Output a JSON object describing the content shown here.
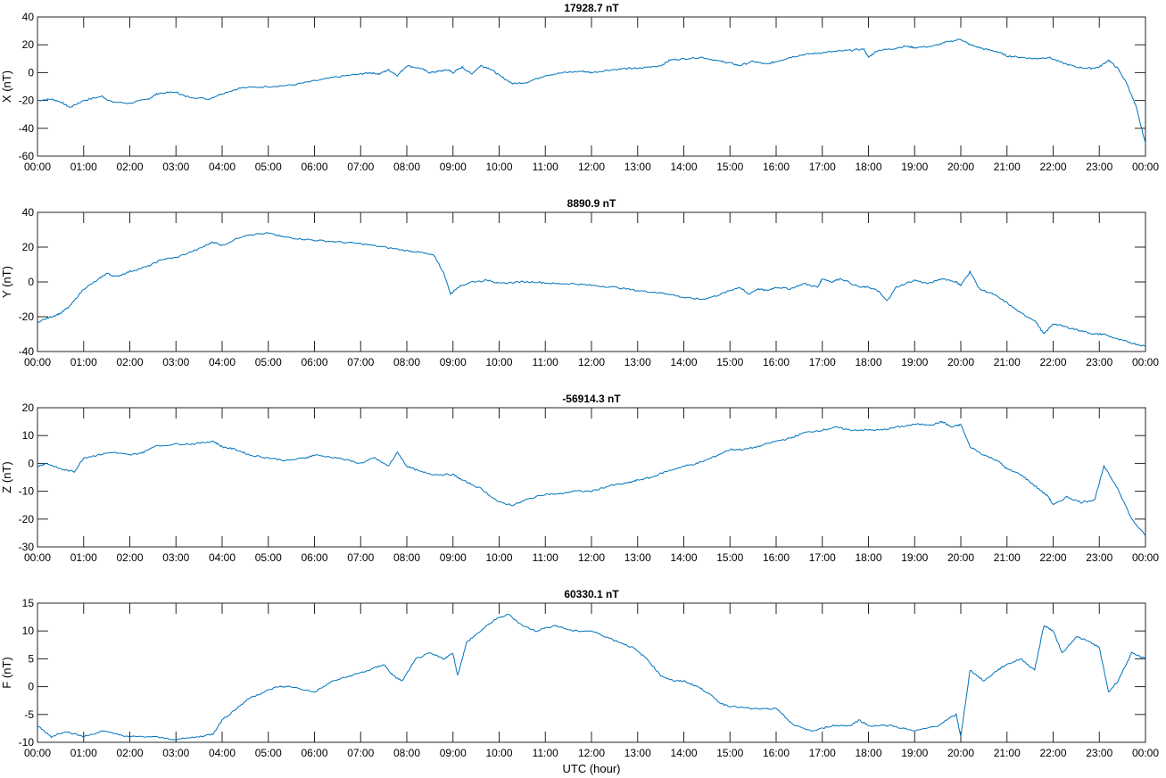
{
  "chart_data": [
    {
      "type": "line",
      "title": "17928.7 nT",
      "ylabel": "X (nT)",
      "xlabel": "",
      "ylim": [
        -60,
        40
      ],
      "yticks": [
        -60,
        -40,
        -20,
        0,
        20,
        40
      ],
      "xlim": [
        0,
        24
      ],
      "xtick_labels": [
        "00:00",
        "01:00",
        "02:00",
        "03:00",
        "04:00",
        "05:00",
        "06:00",
        "07:00",
        "08:00",
        "09:00",
        "10:00",
        "11:00",
        "12:00",
        "13:00",
        "14:00",
        "15:00",
        "16:00",
        "17:00",
        "18:00",
        "19:00",
        "20:00",
        "21:00",
        "22:00",
        "23:00",
        "00:00"
      ],
      "color": "#0072BD",
      "grid": false,
      "series": [
        {
          "x": [
            0,
            0.3,
            0.5,
            0.7,
            1.0,
            1.4,
            1.6,
            2.0,
            2.4,
            2.6,
            3.0,
            3.2,
            3.7,
            4.0,
            4.4,
            5.0,
            5.5,
            6.0,
            6.5,
            7.0,
            7.2,
            7.4,
            7.6,
            7.8,
            8.0,
            8.3,
            8.5,
            8.7,
            8.9,
            9.0,
            9.2,
            9.4,
            9.6,
            9.8,
            10.0,
            10.3,
            10.6,
            11.0,
            11.4,
            11.8,
            12.0,
            12.4,
            12.8,
            13.0,
            13.5,
            13.7,
            14.0,
            14.4,
            14.8,
            15.0,
            15.2,
            15.5,
            15.8,
            16.0,
            16.3,
            16.6,
            16.9,
            17.2,
            17.6,
            17.9,
            18.0,
            18.2,
            18.5,
            18.8,
            19.0,
            19.4,
            19.7,
            20.0,
            20.2,
            20.5,
            20.8,
            21.0,
            21.3,
            21.6,
            21.9,
            22.2,
            22.5,
            22.8,
            23.0,
            23.2,
            23.4,
            23.6,
            23.8,
            24.0
          ],
          "y": [
            -20,
            -19,
            -21,
            -25,
            -20,
            -17,
            -21,
            -22,
            -19,
            -15,
            -14,
            -17,
            -19,
            -15,
            -11,
            -10,
            -9,
            -6,
            -3,
            -1,
            0,
            -1,
            2,
            -2,
            5,
            3,
            0,
            1,
            2,
            0,
            4,
            -1,
            5,
            3,
            -2,
            -8,
            -7,
            -2,
            0,
            1,
            0,
            2,
            3,
            3,
            5,
            9,
            10,
            11,
            8,
            7,
            5,
            8,
            6,
            8,
            11,
            13,
            14,
            15,
            16,
            17,
            11,
            16,
            17,
            19,
            18,
            19,
            22,
            24,
            20,
            17,
            15,
            12,
            11,
            10,
            11,
            7,
            4,
            3,
            4,
            9,
            3,
            -8,
            -25,
            -51
          ]
        }
      ]
    },
    {
      "type": "line",
      "title": "8890.9 nT",
      "ylabel": "Y (nT)",
      "xlabel": "",
      "ylim": [
        -40,
        40
      ],
      "yticks": [
        -40,
        -20,
        0,
        20,
        40
      ],
      "xlim": [
        0,
        24
      ],
      "xtick_labels": [
        "00:00",
        "01:00",
        "02:00",
        "03:00",
        "04:00",
        "05:00",
        "06:00",
        "07:00",
        "08:00",
        "09:00",
        "10:00",
        "11:00",
        "12:00",
        "13:00",
        "14:00",
        "15:00",
        "16:00",
        "17:00",
        "18:00",
        "19:00",
        "20:00",
        "21:00",
        "22:00",
        "23:00",
        "00:00"
      ],
      "color": "#0072BD",
      "grid": false,
      "series": [
        {
          "x": [
            0,
            0.3,
            0.5,
            0.7,
            1.0,
            1.3,
            1.5,
            1.7,
            2.0,
            2.4,
            2.7,
            3.0,
            3.5,
            3.8,
            4.0,
            4.5,
            5.0,
            5.3,
            5.6,
            6.0,
            6.5,
            7.0,
            7.5,
            8.0,
            8.3,
            8.6,
            8.8,
            8.95,
            9.1,
            9.4,
            9.8,
            10.0,
            10.4,
            10.8,
            11.2,
            11.6,
            12.0,
            12.5,
            13.0,
            13.4,
            13.7,
            14.0,
            14.4,
            14.7,
            15.0,
            15.2,
            15.4,
            15.6,
            15.8,
            16.0,
            16.3,
            16.6,
            16.9,
            17.0,
            17.2,
            17.4,
            17.8,
            18.0,
            18.2,
            18.4,
            18.6,
            19.0,
            19.3,
            19.6,
            19.9,
            20.0,
            20.2,
            20.4,
            20.7,
            21.0,
            21.3,
            21.6,
            21.8,
            22.0,
            22.3,
            22.6,
            22.9,
            23.1,
            23.4,
            23.7,
            24.0
          ],
          "y": [
            -23,
            -20,
            -18,
            -14,
            -4,
            1,
            5,
            3,
            6,
            9,
            13,
            14,
            19,
            23,
            21,
            27,
            28,
            26,
            25,
            24,
            23,
            22,
            20,
            18,
            17,
            15,
            5,
            -7,
            -3,
            0,
            1,
            -1,
            0,
            0,
            -1,
            -1,
            -2,
            -3,
            -5,
            -6,
            -7,
            -9,
            -10,
            -8,
            -5,
            -3,
            -7,
            -4,
            -5,
            -3,
            -4,
            -1,
            -3,
            2,
            0,
            2,
            -3,
            -3,
            -5,
            -11,
            -3,
            1,
            -1,
            2,
            0,
            -2,
            6,
            -4,
            -7,
            -12,
            -18,
            -22,
            -30,
            -24,
            -26,
            -28,
            -30,
            -30,
            -33,
            -35,
            -37
          ]
        }
      ]
    },
    {
      "type": "line",
      "title": "-56914.3 nT",
      "ylabel": "Z (nT)",
      "xlabel": "",
      "ylim": [
        -30,
        20
      ],
      "yticks": [
        -30,
        -20,
        -10,
        0,
        10,
        20
      ],
      "xlim": [
        0,
        24
      ],
      "xtick_labels": [
        "00:00",
        "01:00",
        "02:00",
        "03:00",
        "04:00",
        "05:00",
        "06:00",
        "07:00",
        "08:00",
        "09:00",
        "10:00",
        "11:00",
        "12:00",
        "13:00",
        "14:00",
        "15:00",
        "16:00",
        "17:00",
        "18:00",
        "19:00",
        "20:00",
        "21:00",
        "22:00",
        "23:00",
        "00:00"
      ],
      "color": "#0072BD",
      "grid": false,
      "series": [
        {
          "x": [
            0,
            0.2,
            0.5,
            0.8,
            1.0,
            1.3,
            1.6,
            2.0,
            2.3,
            2.5,
            3.0,
            3.4,
            3.8,
            4.0,
            4.3,
            4.6,
            5.0,
            5.4,
            5.8,
            6.0,
            6.5,
            7.0,
            7.3,
            7.6,
            7.8,
            8.0,
            8.3,
            8.6,
            9.0,
            9.2,
            9.6,
            10.0,
            10.3,
            10.6,
            11.0,
            11.3,
            11.6,
            12.0,
            12.4,
            12.8,
            13.0,
            13.3,
            13.6,
            14.0,
            14.3,
            14.6,
            15.0,
            15.3,
            15.6,
            16.0,
            16.3,
            16.6,
            17.0,
            17.3,
            17.6,
            18.0,
            18.3,
            18.6,
            19.0,
            19.4,
            19.6,
            19.8,
            20.0,
            20.2,
            20.5,
            20.8,
            21.0,
            21.3,
            21.6,
            21.9,
            22.0,
            22.3,
            22.6,
            22.9,
            23.1,
            23.4,
            23.7,
            24.0
          ],
          "y": [
            -1,
            0,
            -2,
            -3,
            2,
            3,
            4,
            3,
            4,
            6,
            7,
            7,
            8,
            6,
            5,
            3,
            2,
            1,
            2,
            3,
            2,
            0,
            2,
            -1,
            4,
            -1,
            -3,
            -4,
            -4,
            -6,
            -9,
            -14,
            -15,
            -13,
            -11,
            -11,
            -10,
            -10,
            -8,
            -7,
            -6,
            -5,
            -3,
            -1,
            0,
            2,
            5,
            5,
            6,
            8,
            9,
            11,
            12,
            13,
            12,
            12,
            12,
            13,
            14,
            14,
            15,
            13,
            14,
            6,
            3,
            1,
            -2,
            -4,
            -8,
            -12,
            -15,
            -12,
            -14,
            -13,
            -1,
            -9,
            -20,
            -26
          ]
        }
      ]
    },
    {
      "type": "line",
      "title": "60330.1 nT",
      "ylabel": "F (nT)",
      "xlabel": "UTC (hour)",
      "ylim": [
        -10,
        15
      ],
      "yticks": [
        -10,
        -5,
        0,
        5,
        10,
        15
      ],
      "xlim": [
        0,
        24
      ],
      "xtick_labels": [
        "00:00",
        "01:00",
        "02:00",
        "03:00",
        "04:00",
        "05:00",
        "06:00",
        "07:00",
        "08:00",
        "09:00",
        "10:00",
        "11:00",
        "12:00",
        "13:00",
        "14:00",
        "15:00",
        "16:00",
        "17:00",
        "18:00",
        "19:00",
        "20:00",
        "21:00",
        "22:00",
        "23:00",
        "00:00"
      ],
      "color": "#0072BD",
      "grid": false,
      "series": [
        {
          "x": [
            0,
            0.3,
            0.6,
            1.0,
            1.4,
            2.0,
            2.5,
            3.0,
            3.5,
            3.8,
            4.0,
            4.3,
            4.6,
            4.9,
            5.2,
            5.5,
            6.0,
            6.4,
            6.8,
            7.2,
            7.5,
            7.7,
            7.9,
            8.2,
            8.5,
            8.8,
            9.0,
            9.1,
            9.3,
            9.6,
            9.9,
            10.2,
            10.5,
            10.8,
            11.2,
            11.6,
            12.0,
            12.3,
            12.6,
            12.9,
            13.2,
            13.5,
            13.8,
            14.0,
            14.3,
            14.5,
            14.8,
            15.0,
            15.5,
            16.0,
            16.4,
            16.8,
            17.2,
            17.6,
            17.8,
            18.0,
            18.5,
            19.0,
            19.5,
            19.9,
            20.0,
            20.2,
            20.5,
            20.8,
            21.0,
            21.3,
            21.6,
            21.8,
            22.0,
            22.2,
            22.5,
            22.8,
            23.0,
            23.2,
            23.4,
            23.7,
            24.0
          ],
          "y": [
            -7,
            -9,
            -8,
            -9,
            -8,
            -9,
            -9,
            -9.5,
            -9,
            -8.5,
            -6,
            -4,
            -2,
            -1,
            0,
            0,
            -1,
            1,
            2,
            3,
            4,
            2,
            1,
            5,
            6,
            5,
            6,
            2,
            8,
            10,
            12,
            13,
            11,
            10,
            11,
            10,
            10,
            9,
            8,
            7,
            5,
            2,
            1,
            1,
            0,
            -1,
            -3,
            -3.5,
            -4,
            -4,
            -7,
            -8,
            -7,
            -7,
            -6,
            -7,
            -7,
            -8,
            -7,
            -5,
            -9,
            3,
            1,
            3,
            4,
            5,
            3,
            11,
            10,
            6,
            9,
            8,
            7,
            -1,
            1,
            6,
            5
          ]
        }
      ]
    }
  ]
}
